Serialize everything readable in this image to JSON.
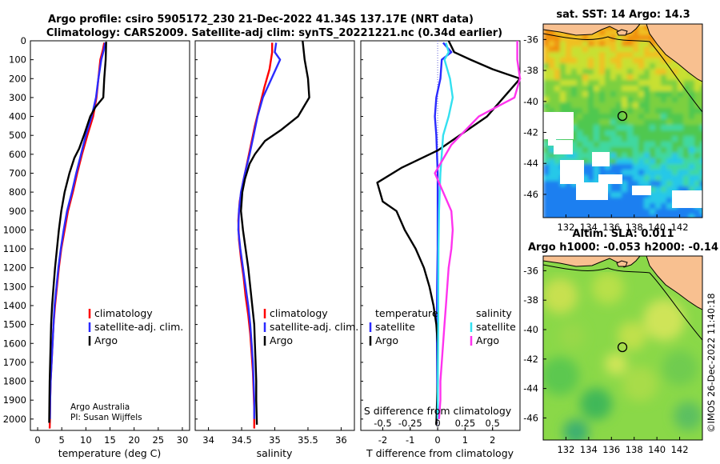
{
  "title": {
    "line1": "Argo profile: csiro 5905172_230 21-Dec-2022 41.34S 137.17E (NRT data)",
    "line2": "Climatology: CARS2009. Satellite-adj clim: synTS_20221221.nc (0.34d earlier)"
  },
  "colors": {
    "climatology": "#ff0000",
    "satellite": "#2b2bff",
    "argo": "#000000",
    "sat_salinity": "#33e0f0",
    "argo_salinity": "#ff33ee",
    "land": "#f8c090"
  },
  "chart_data": [
    {
      "type": "line",
      "id": "temperature",
      "xlabel": "temperature (deg C)",
      "xlim": [
        -1.5,
        31.5
      ],
      "xticks": [
        0,
        5,
        10,
        15,
        20,
        25,
        30
      ],
      "ylim": [
        0,
        2060
      ],
      "yticks": [
        0,
        100,
        200,
        300,
        400,
        500,
        600,
        700,
        800,
        900,
        1000,
        1100,
        1200,
        1300,
        1400,
        1500,
        1600,
        1700,
        1800,
        1900,
        2000
      ],
      "legend": [
        "climatology",
        "satellite-adj. clim.",
        "Argo"
      ],
      "credit": [
        "Argo Australia",
        "PI: Susan Wijffels"
      ],
      "series": [
        {
          "name": "climatology",
          "color": "#ff0000",
          "points": [
            [
              13.8,
              10
            ],
            [
              13.5,
              50
            ],
            [
              13.0,
              100
            ],
            [
              12.6,
              200
            ],
            [
              12.2,
              300
            ],
            [
              11.5,
              400
            ],
            [
              10.3,
              500
            ],
            [
              9.2,
              600
            ],
            [
              8.2,
              700
            ],
            [
              7.3,
              800
            ],
            [
              6.3,
              900
            ],
            [
              5.6,
              1000
            ],
            [
              4.9,
              1100
            ],
            [
              4.4,
              1200
            ],
            [
              4.0,
              1300
            ],
            [
              3.6,
              1400
            ],
            [
              3.3,
              1500
            ],
            [
              3.1,
              1600
            ],
            [
              2.9,
              1700
            ],
            [
              2.7,
              1800
            ],
            [
              2.6,
              1900
            ],
            [
              2.55,
              2000
            ],
            [
              2.5,
              2050
            ]
          ]
        },
        {
          "name": "satellite-adj. clim.",
          "color": "#2b2bff",
          "points": [
            [
              14.0,
              10
            ],
            [
              13.7,
              50
            ],
            [
              13.2,
              100
            ],
            [
              12.6,
              200
            ],
            [
              12.1,
              300
            ],
            [
              11.2,
              400
            ],
            [
              10.0,
              500
            ],
            [
              9.0,
              600
            ],
            [
              8.0,
              700
            ],
            [
              7.1,
              800
            ],
            [
              6.1,
              900
            ],
            [
              5.4,
              1000
            ],
            [
              4.8,
              1100
            ],
            [
              4.3,
              1200
            ],
            [
              3.9,
              1300
            ],
            [
              3.5,
              1400
            ],
            [
              3.3,
              1500
            ],
            [
              3.1,
              1600
            ],
            [
              2.9,
              1700
            ],
            [
              2.7,
              1800
            ],
            [
              2.6,
              1900
            ],
            [
              2.55,
              2000
            ]
          ]
        },
        {
          "name": "Argo",
          "color": "#000000",
          "points": [
            [
              14.2,
              5
            ],
            [
              14.1,
              100
            ],
            [
              13.8,
              200
            ],
            [
              13.6,
              300
            ],
            [
              12.0,
              350
            ],
            [
              10.9,
              400
            ],
            [
              9.6,
              500
            ],
            [
              8.6,
              570
            ],
            [
              7.6,
              620
            ],
            [
              6.6,
              700
            ],
            [
              5.6,
              800
            ],
            [
              4.9,
              900
            ],
            [
              4.4,
              1000
            ],
            [
              4.0,
              1100
            ],
            [
              3.6,
              1200
            ],
            [
              3.3,
              1300
            ],
            [
              3.0,
              1400
            ],
            [
              2.8,
              1500
            ],
            [
              2.7,
              1600
            ],
            [
              2.6,
              1700
            ],
            [
              2.5,
              1800
            ],
            [
              2.45,
              1900
            ],
            [
              2.4,
              2020
            ]
          ]
        }
      ]
    },
    {
      "type": "line",
      "id": "salinity",
      "xlabel": "salinity",
      "xlim": [
        33.8,
        36.2
      ],
      "xticks": [
        34,
        34.5,
        35,
        35.5,
        36
      ],
      "xticklabels": [
        "34",
        "34.5",
        "35",
        "35.5",
        "36"
      ],
      "ylim": [
        0,
        2060
      ],
      "legend": [
        "climatology",
        "satellite-adj. clim.",
        "Argo"
      ],
      "series": [
        {
          "name": "climatology",
          "color": "#ff0000",
          "points": [
            [
              34.96,
              10
            ],
            [
              34.96,
              60
            ],
            [
              34.92,
              150
            ],
            [
              34.84,
              250
            ],
            [
              34.77,
              350
            ],
            [
              34.7,
              450
            ],
            [
              34.64,
              550
            ],
            [
              34.58,
              650
            ],
            [
              34.52,
              750
            ],
            [
              34.47,
              850
            ],
            [
              34.45,
              950
            ],
            [
              34.46,
              1050
            ],
            [
              34.49,
              1150
            ],
            [
              34.53,
              1250
            ],
            [
              34.56,
              1350
            ],
            [
              34.6,
              1450
            ],
            [
              34.63,
              1550
            ],
            [
              34.65,
              1650
            ],
            [
              34.67,
              1750
            ],
            [
              34.68,
              1850
            ],
            [
              34.69,
              1950
            ],
            [
              34.69,
              2050
            ]
          ]
        },
        {
          "name": "satellite-adj. clim.",
          "color": "#2b2bff",
          "points": [
            [
              35.02,
              10
            ],
            [
              35.0,
              60
            ],
            [
              35.08,
              100
            ],
            [
              34.95,
              200
            ],
            [
              34.82,
              300
            ],
            [
              34.74,
              400
            ],
            [
              34.68,
              500
            ],
            [
              34.62,
              600
            ],
            [
              34.55,
              700
            ],
            [
              34.49,
              800
            ],
            [
              34.46,
              900
            ],
            [
              34.45,
              1000
            ],
            [
              34.48,
              1100
            ],
            [
              34.52,
              1200
            ],
            [
              34.56,
              1300
            ],
            [
              34.6,
              1400
            ],
            [
              34.63,
              1500
            ],
            [
              34.65,
              1600
            ],
            [
              34.67,
              1700
            ],
            [
              34.68,
              1800
            ],
            [
              34.69,
              1900
            ],
            [
              34.69,
              2000
            ]
          ]
        },
        {
          "name": "Argo",
          "color": "#000000",
          "points": [
            [
              35.42,
              0
            ],
            [
              35.45,
              100
            ],
            [
              35.5,
              200
            ],
            [
              35.52,
              300
            ],
            [
              35.35,
              400
            ],
            [
              35.1,
              470
            ],
            [
              34.85,
              530
            ],
            [
              34.7,
              600
            ],
            [
              34.62,
              650
            ],
            [
              34.55,
              730
            ],
            [
              34.51,
              800
            ],
            [
              34.49,
              900
            ],
            [
              34.52,
              1000
            ],
            [
              34.56,
              1100
            ],
            [
              34.6,
              1200
            ],
            [
              34.63,
              1300
            ],
            [
              34.66,
              1400
            ],
            [
              34.69,
              1500
            ],
            [
              34.7,
              1600
            ],
            [
              34.71,
              1700
            ],
            [
              34.72,
              1800
            ],
            [
              34.72,
              1900
            ],
            [
              34.73,
              2030
            ]
          ]
        }
      ]
    },
    {
      "type": "line",
      "id": "difference",
      "xlabel": "T difference from climatology",
      "xlabel_top": "S difference from climatology",
      "xlim": [
        -2.8,
        3.0
      ],
      "xticks": [
        -2,
        -1,
        0,
        1,
        2
      ],
      "xticklabels": [
        "-2",
        "-1",
        "0",
        "1",
        "2"
      ],
      "s_scale": 4,
      "s_ticks": [
        -0.5,
        -0.25,
        0,
        0.25,
        0.5
      ],
      "s_ticklabels": [
        "-0.5",
        "-0.25",
        "0",
        "0.25",
        "0.5"
      ],
      "ylim": [
        0,
        2060
      ],
      "legend_left": {
        "title": "temperature",
        "items": [
          "satellite",
          "Argo"
        ]
      },
      "legend_right": {
        "title": "salinity",
        "items": [
          "satellite",
          "Argo"
        ]
      },
      "series": [
        {
          "name": "T satellite",
          "color": "#2b2bff",
          "points": [
            [
              0.2,
              10
            ],
            [
              0.5,
              60
            ],
            [
              0.15,
              100
            ],
            [
              0.1,
              200
            ],
            [
              -0.05,
              300
            ],
            [
              -0.1,
              400
            ],
            [
              -0.05,
              500
            ],
            [
              0.0,
              700
            ],
            [
              0.0,
              900
            ],
            [
              0.0,
              1100
            ],
            [
              -0.02,
              1300
            ],
            [
              -0.03,
              1500
            ],
            [
              -0.02,
              1700
            ],
            [
              -0.01,
              1900
            ],
            [
              0.0,
              2000
            ]
          ]
        },
        {
          "name": "T Argo",
          "color": "#000000",
          "points": [
            [
              0.4,
              0
            ],
            [
              0.6,
              60
            ],
            [
              1.2,
              100
            ],
            [
              2.0,
              150
            ],
            [
              3.0,
              200
            ],
            [
              1.8,
              400
            ],
            [
              0.0,
              580
            ],
            [
              -1.3,
              670
            ],
            [
              -2.2,
              750
            ],
            [
              -2.0,
              850
            ],
            [
              -1.5,
              900
            ],
            [
              -1.2,
              1000
            ],
            [
              -0.8,
              1100
            ],
            [
              -0.5,
              1200
            ],
            [
              -0.3,
              1300
            ],
            [
              -0.15,
              1400
            ],
            [
              -0.05,
              1500
            ],
            [
              0.0,
              1600
            ],
            [
              0.0,
              1800
            ],
            [
              -0.05,
              2030
            ]
          ]
        },
        {
          "name": "S satellite",
          "color": "#33e0f0",
          "points": [
            [
              0.3,
              10
            ],
            [
              0.4,
              60
            ],
            [
              0.25,
              100
            ],
            [
              0.45,
              200
            ],
            [
              0.55,
              300
            ],
            [
              0.4,
              400
            ],
            [
              0.2,
              500
            ],
            [
              0.1,
              700
            ],
            [
              0.05,
              900
            ],
            [
              0.03,
              1100
            ],
            [
              0.02,
              1300
            ],
            [
              0.02,
              1500
            ],
            [
              0.01,
              1700
            ],
            [
              0.0,
              1900
            ],
            [
              0.0,
              2000
            ]
          ]
        },
        {
          "name": "S Argo",
          "color": "#ff33ee",
          "points": [
            [
              2.9,
              0
            ],
            [
              2.9,
              100
            ],
            [
              3.0,
              200
            ],
            [
              2.8,
              300
            ],
            [
              1.5,
              400
            ],
            [
              0.5,
              550
            ],
            [
              -0.1,
              700
            ],
            [
              0.2,
              800
            ],
            [
              0.5,
              900
            ],
            [
              0.55,
              1000
            ],
            [
              0.5,
              1100
            ],
            [
              0.4,
              1200
            ],
            [
              0.35,
              1300
            ],
            [
              0.3,
              1400
            ],
            [
              0.25,
              1500
            ],
            [
              0.2,
              1600
            ],
            [
              0.15,
              1700
            ],
            [
              0.1,
              1800
            ],
            [
              0.1,
              1900
            ],
            [
              0.05,
              2000
            ]
          ]
        }
      ]
    },
    {
      "type": "heatmap",
      "id": "sst_map",
      "title": "sat. SST: 14 Argo: 14.3",
      "xticks": [
        132,
        134,
        136,
        138,
        140,
        142
      ],
      "yticks": [
        -36,
        -38,
        -40,
        -42,
        -44,
        -46
      ],
      "xlim": [
        130,
        144
      ],
      "ylim": [
        -47.5,
        -35
      ],
      "float_position": [
        137.17,
        -41.34
      ]
    },
    {
      "type": "heatmap",
      "id": "sla_map",
      "title_line1": "Altim. SLA: 0.011",
      "title_line2": "Argo h1000: -0.053 h2000: -0.14",
      "xticks": [
        132,
        134,
        136,
        138,
        140,
        142
      ],
      "yticks": [
        -36,
        -38,
        -40,
        -42,
        -44,
        -46
      ],
      "xlim": [
        130,
        144
      ],
      "ylim": [
        -47.5,
        -35
      ],
      "float_position": [
        137.17,
        -41.34
      ]
    }
  ],
  "stamp": "©IMOS 26-Dec-2022 11:40:18"
}
